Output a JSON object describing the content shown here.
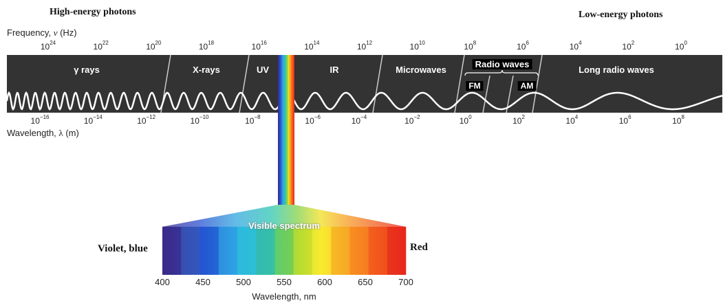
{
  "header": {
    "high_energy": "High-energy photons",
    "low_energy": "Low-energy photons"
  },
  "frequency": {
    "axis_label_prefix": "Frequency, ",
    "axis_symbol": "ν",
    "axis_unit": " (Hz)",
    "ticks": [
      {
        "base": "10",
        "exp": "24"
      },
      {
        "base": "10",
        "exp": "22"
      },
      {
        "base": "10",
        "exp": "20"
      },
      {
        "base": "10",
        "exp": "18"
      },
      {
        "base": "10",
        "exp": "16"
      },
      {
        "base": "10",
        "exp": "14"
      },
      {
        "base": "10",
        "exp": "12"
      },
      {
        "base": "10",
        "exp": "10"
      },
      {
        "base": "10",
        "exp": "8"
      },
      {
        "base": "10",
        "exp": "6"
      },
      {
        "base": "10",
        "exp": "4"
      },
      {
        "base": "10",
        "exp": "2"
      },
      {
        "base": "10",
        "exp": "0"
      }
    ]
  },
  "wavelength": {
    "axis_label_prefix": "Wavelength, ",
    "axis_symbol": "λ",
    "axis_unit": " (m)",
    "ticks": [
      {
        "base": "10",
        "exp": "−16"
      },
      {
        "base": "10",
        "exp": "−14"
      },
      {
        "base": "10",
        "exp": "−12"
      },
      {
        "base": "10",
        "exp": "−10"
      },
      {
        "base": "10",
        "exp": "−8"
      },
      {
        "base": "10",
        "exp": "−6"
      },
      {
        "base": "10",
        "exp": "−4"
      },
      {
        "base": "10",
        "exp": "−2"
      },
      {
        "base": "10",
        "exp": "0"
      },
      {
        "base": "10",
        "exp": "2"
      },
      {
        "base": "10",
        "exp": "4"
      },
      {
        "base": "10",
        "exp": "6"
      },
      {
        "base": "10",
        "exp": "8"
      }
    ]
  },
  "bands": {
    "gamma": "γ rays",
    "xrays": "X-rays",
    "uv": "UV",
    "ir": "IR",
    "microwaves": "Microwaves",
    "radio": "Radio waves",
    "fm": "FM",
    "am": "AM",
    "long_radio": "Long radio waves"
  },
  "visible": {
    "title": "Visible spectrum",
    "left_label": "Violet, blue",
    "right_label": "Red",
    "axis_label": "Wavelength, nm",
    "ticks": [
      "400",
      "450",
      "500",
      "550",
      "600",
      "650",
      "700"
    ]
  },
  "colors": {
    "band_bg": "#333333",
    "wave": "#ffffff",
    "text": "#222222"
  }
}
